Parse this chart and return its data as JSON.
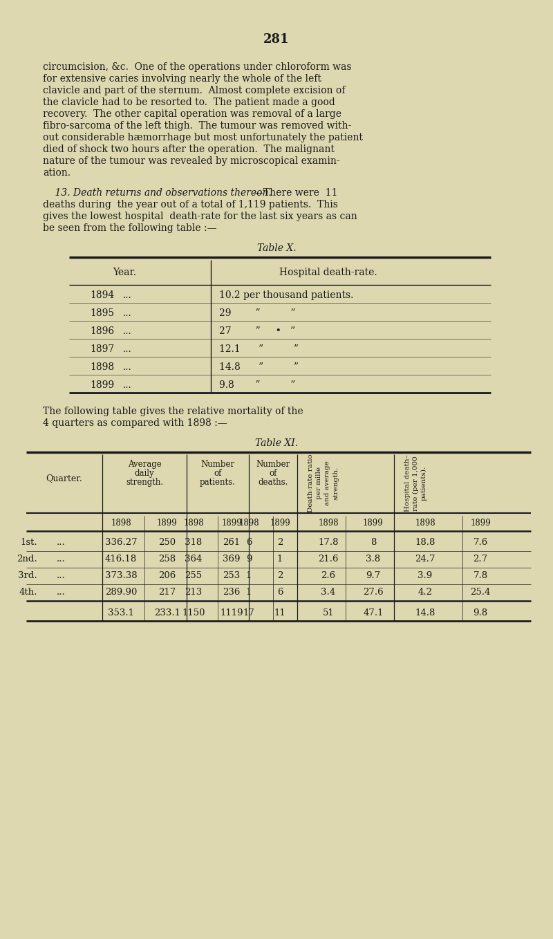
{
  "background_color": "#ddd8b0",
  "page_number": "281",
  "p1_lines": [
    "circumcision, &c.  One of the operations under chloroform was",
    "for extensive caries involving nearly the whole of the left",
    "clavicle and part of the sternum.  Almost complete excision of",
    "the clavicle had to be resorted to.  The patient made a good",
    "recovery.  The other capital operation was removal of a large",
    "fibro-sarcoma of the left thigh.  The tumour was removed with­",
    "out considerable hæmorrhage but most unfortunately the patient",
    "died of shock two hours after the operation.  The malignant",
    "nature of the tumour was revealed by microscopical examin­",
    "ation."
  ],
  "sec13_italic": "    13. Death returns and observations thereon.",
  "sec13_cont": "—There were  11",
  "sec13_lines": [
    "deaths during  the year out of a total of 1,119 patients.  This",
    "gives the lowest hospital  death-rate for the last six years as can",
    "be seen from the following table :—"
  ],
  "table_x_title": "Table X.",
  "table_x_rows": [
    [
      "1894",
      "...",
      "10.2 per thousand patients."
    ],
    [
      "1895",
      "...",
      "29        ”          ”"
    ],
    [
      "1896",
      "...",
      "27        ”     •   ”"
    ],
    [
      "1897",
      "...",
      "12.1      ”          ”"
    ],
    [
      "1898",
      "...",
      "14.8      ”          ”"
    ],
    [
      "1899",
      "...",
      "9.8       ”          ”"
    ]
  ],
  "between_text": [
    "The following table gives the relative mortality of the",
    "4 quarters as compared with 1898 :—"
  ],
  "table_xi_title": "Table XI.",
  "table_xi_data": [
    [
      "1st.",
      "...",
      "336.27",
      "250",
      "318",
      "261",
      "6",
      "2",
      "17.8",
      "8",
      "18.8",
      "7.6"
    ],
    [
      "2nd.",
      "...",
      "416.18",
      "258",
      "364",
      "369",
      "9",
      "1",
      "21.6",
      "3.8",
      "24.7",
      "2.7"
    ],
    [
      "3rd.",
      "...",
      "373.38",
      "206",
      "255",
      "253",
      "1",
      "2",
      "2.6",
      "9.7",
      "3.9",
      "7.8"
    ],
    [
      "4th.",
      "...",
      "289.90",
      "217",
      "213",
      "236",
      "1",
      "6",
      "3.4",
      "27.6",
      "4.2",
      "25.4"
    ]
  ],
  "table_xi_total": [
    "353.1",
    "233.1",
    "1150",
    "1119",
    "17",
    "11",
    "51",
    "47.1",
    "14.8",
    "9.8"
  ],
  "text_color": "#1a1a1a",
  "line_color": "#1a1a1a"
}
